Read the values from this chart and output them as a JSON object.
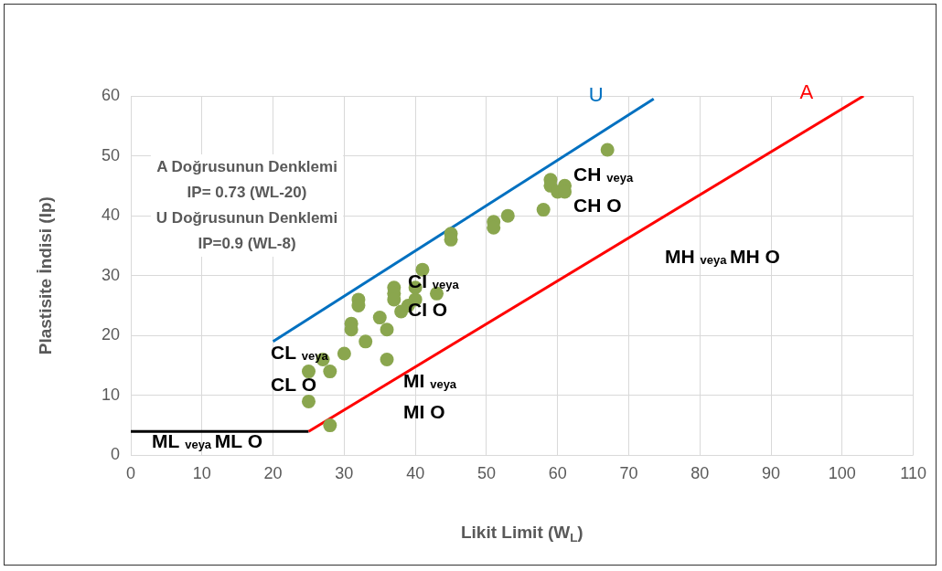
{
  "chart_data": {
    "type": "scatter",
    "xlabel": "Likit Limit (W$_{L}$)",
    "ylabel": "Plastisite İndisi (Ip)",
    "xlim": [
      0,
      110
    ],
    "xticks": [
      0,
      10,
      20,
      30,
      40,
      50,
      60,
      70,
      80,
      90,
      100,
      110
    ],
    "ylim": [
      0,
      60
    ],
    "yticks": [
      0,
      10,
      20,
      30,
      40,
      50,
      60
    ],
    "grid": true,
    "legend": false,
    "series": [
      {
        "marker": "circle",
        "color": "#8aa64e",
        "x": [
          25,
          25,
          27,
          28,
          28,
          30,
          31,
          31,
          32,
          32,
          33,
          35,
          36,
          36,
          37,
          37,
          37,
          38,
          39,
          40,
          40,
          41,
          43,
          45,
          45,
          51,
          51,
          53,
          58,
          59,
          59,
          60,
          61,
          61,
          67
        ],
        "values": [
          14,
          9,
          16,
          14,
          5,
          17,
          22,
          21,
          26,
          25,
          19,
          23,
          21,
          16,
          28,
          27,
          26,
          24,
          25,
          26,
          28,
          31,
          27,
          37,
          36,
          39,
          38,
          40,
          41,
          46,
          45,
          44,
          45,
          44,
          51
        ]
      },
      {
        "type": "line",
        "name": "U",
        "color": "#0070c0",
        "x": [
          20,
          73.5
        ],
        "values": [
          19,
          59.5
        ]
      },
      {
        "type": "line",
        "name": "A",
        "color": "#ff0000",
        "x": [
          25,
          103
        ],
        "values": [
          4,
          60
        ]
      },
      {
        "type": "line",
        "color": "#000000",
        "x": [
          0,
          25
        ],
        "values": [
          4,
          4
        ]
      }
    ],
    "annotations": [
      "A Doğrusunun Denklemi",
      "IP= 0.73 (WL-20)",
      "U Doğrusunun Denklemi",
      "IP=0.9 (WL-8)",
      "CL veya",
      "CL O",
      "CI veya",
      "CI O",
      "CH veya",
      "CH O",
      "MI veya",
      "MI O",
      "MH veya MH O",
      "ML veya ML O"
    ]
  }
}
